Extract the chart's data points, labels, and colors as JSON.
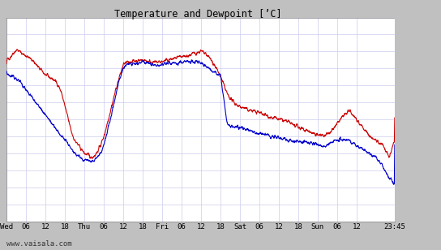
{
  "title": "Temperature and Dewpoint [’C]",
  "ylim": [
    -18,
    6
  ],
  "plot_bg_color": "#ffffff",
  "outer_bg_color": "#c0c0c0",
  "grid_color": "#ccccdd",
  "temp_color": "#cc0000",
  "dewp_color": "#0000cc",
  "line_width": 0.8,
  "x_tick_labels": [
    "Wed",
    "06",
    "12",
    "18",
    "Thu",
    "06",
    "12",
    "18",
    "Fri",
    "06",
    "12",
    "18",
    "Sat",
    "06",
    "12",
    "18",
    "Sun",
    "06",
    "12",
    "23:45"
  ],
  "x_tick_positions": [
    0,
    6,
    12,
    18,
    24,
    30,
    36,
    42,
    48,
    54,
    60,
    66,
    72,
    78,
    84,
    90,
    96,
    102,
    108,
    119.75
  ],
  "xlim": [
    0,
    119.75
  ],
  "watermark": "www.vaisala.com",
  "temp_knots_x": [
    0,
    1,
    2,
    3,
    4,
    5,
    6,
    7,
    8,
    9,
    10,
    11,
    12,
    13,
    14,
    15,
    16,
    17,
    18,
    19,
    20,
    21,
    22,
    23,
    24,
    25,
    26,
    27,
    28,
    29,
    30,
    32,
    34,
    36,
    38,
    40,
    42,
    44,
    46,
    48,
    50,
    52,
    54,
    56,
    58,
    60,
    62,
    64,
    66,
    68,
    70,
    72,
    74,
    76,
    78,
    80,
    82,
    84,
    86,
    88,
    90,
    92,
    94,
    96,
    98,
    100,
    102,
    104,
    106,
    108,
    110,
    112,
    114,
    116,
    118,
    119.75
  ],
  "temp_knots_y": [
    1.0,
    1.3,
    1.8,
    2.2,
    2.0,
    1.7,
    1.5,
    1.2,
    1.0,
    0.5,
    0.0,
    -0.3,
    -0.8,
    -1.0,
    -1.2,
    -1.5,
    -2.0,
    -3.0,
    -4.5,
    -6.0,
    -7.5,
    -8.5,
    -9.0,
    -9.5,
    -10.0,
    -10.2,
    -10.5,
    -10.3,
    -9.8,
    -9.0,
    -8.0,
    -5.0,
    -2.0,
    0.5,
    0.8,
    0.9,
    1.0,
    0.8,
    0.7,
    0.8,
    1.0,
    1.2,
    1.3,
    1.5,
    1.8,
    2.0,
    1.5,
    0.5,
    -1.0,
    -3.0,
    -4.0,
    -4.5,
    -4.8,
    -5.0,
    -5.2,
    -5.5,
    -5.8,
    -6.0,
    -6.2,
    -6.5,
    -7.0,
    -7.2,
    -7.5,
    -7.8,
    -8.0,
    -7.5,
    -6.5,
    -5.5,
    -5.0,
    -6.0,
    -7.0,
    -8.0,
    -8.5,
    -9.0,
    -10.5,
    -8.5
  ],
  "dewp_knots_x": [
    0,
    1,
    2,
    3,
    4,
    5,
    6,
    7,
    8,
    9,
    10,
    11,
    12,
    13,
    14,
    15,
    16,
    17,
    18,
    19,
    20,
    21,
    22,
    23,
    24,
    25,
    26,
    27,
    28,
    29,
    30,
    32,
    34,
    36,
    38,
    40,
    42,
    44,
    46,
    48,
    50,
    52,
    54,
    56,
    58,
    60,
    62,
    64,
    66,
    68,
    70,
    72,
    74,
    76,
    78,
    80,
    82,
    84,
    86,
    88,
    90,
    92,
    94,
    96,
    98,
    100,
    102,
    104,
    106,
    108,
    110,
    112,
    114,
    116,
    118,
    119.75
  ],
  "dewp_knots_y": [
    -0.5,
    -0.8,
    -1.0,
    -1.2,
    -1.5,
    -2.0,
    -2.5,
    -3.0,
    -3.5,
    -4.0,
    -4.5,
    -5.0,
    -5.5,
    -6.0,
    -6.5,
    -7.0,
    -7.5,
    -8.0,
    -8.5,
    -9.0,
    -9.5,
    -10.0,
    -10.2,
    -10.5,
    -10.8,
    -10.8,
    -11.0,
    -10.8,
    -10.5,
    -10.0,
    -9.0,
    -6.0,
    -2.5,
    0.2,
    0.5,
    0.6,
    0.7,
    0.5,
    0.4,
    0.5,
    0.6,
    0.7,
    0.7,
    0.8,
    0.8,
    0.7,
    0.2,
    -0.5,
    -0.8,
    -6.5,
    -6.8,
    -7.0,
    -7.2,
    -7.5,
    -7.7,
    -7.8,
    -8.0,
    -8.2,
    -8.4,
    -8.5,
    -8.6,
    -8.7,
    -8.8,
    -9.0,
    -9.2,
    -8.8,
    -8.5,
    -8.3,
    -8.5,
    -9.0,
    -9.5,
    -10.0,
    -10.5,
    -11.5,
    -13.0,
    -13.5
  ]
}
